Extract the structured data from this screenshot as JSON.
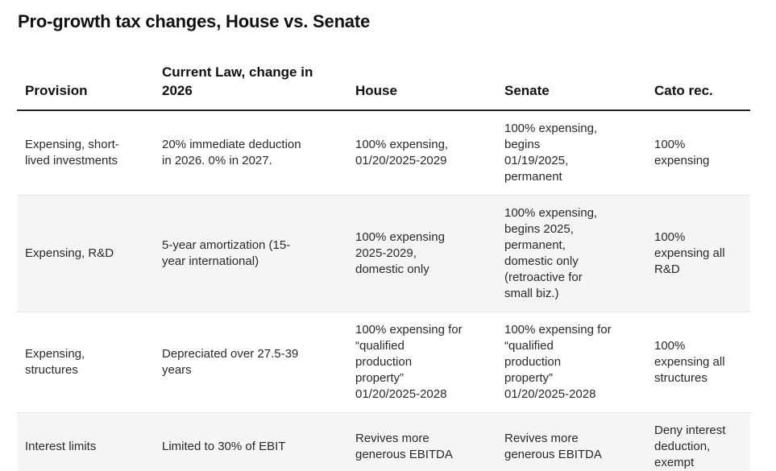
{
  "title": "Pro-growth tax changes, House vs. Senate",
  "table": {
    "headers": [
      "Provision",
      "Current Law, change in\n2026",
      "House",
      "Senate",
      "Cato rec."
    ],
    "rows": [
      {
        "provision": "Expensing, short-\nlived investments",
        "current_law": "20% immediate deduction\nin 2026. 0% in 2027.",
        "house": "100% expensing,\n01/20/2025-2029",
        "senate": "100% expensing,\nbegins\n01/19/2025,\npermanent",
        "cato": "100%\nexpensing"
      },
      {
        "provision": "Expensing, R&D",
        "current_law": "5-year amortization (15-\nyear international)",
        "house": "100% expensing\n2025-2029,\ndomestic only",
        "senate": "100% expensing,\nbegins 2025,\npermanent,\ndomestic only\n(retroactive for\nsmall biz.)",
        "cato": "100%\nexpensing all\nR&D"
      },
      {
        "provision": "Expensing,\nstructures",
        "current_law": "Depreciated over 27.5-39\nyears",
        "house": "100% expensing for\n“qualified\nproduction\nproperty”\n01/20/2025-2028",
        "senate": "100% expensing for\n“qualified\nproduction\nproperty”\n01/20/2025-2028",
        "cato": "100%\nexpensing all\nstructures"
      },
      {
        "provision": "Interest limits",
        "current_law": "Limited to 30% of EBIT",
        "house": "Revives more\ngenerous EBITDA",
        "senate": "Revives more\ngenerous EBITDA",
        "cato": "Deny interest\ndeduction,\nexempt"
      }
    ]
  }
}
